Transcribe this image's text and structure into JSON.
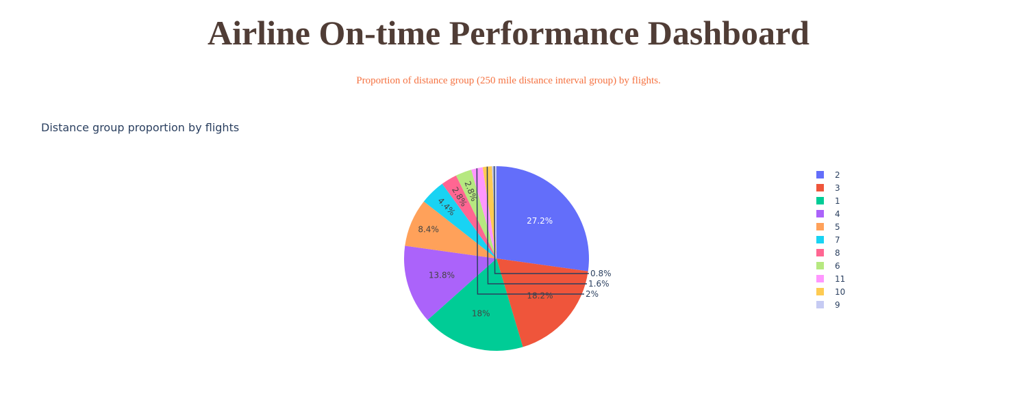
{
  "header": {
    "title": "Airline On-time Performance Dashboard",
    "subtitle": "Proportion of distance group (250 mile distance interval group) by flights."
  },
  "chart_data": {
    "type": "pie",
    "title": "Distance group proportion by flights",
    "legend_position": "right",
    "slices": [
      {
        "label": "2",
        "value": 27.2,
        "text": "27.2%",
        "color": "#636efa"
      },
      {
        "label": "3",
        "value": 18.2,
        "text": "18.2%",
        "color": "#EF553B"
      },
      {
        "label": "1",
        "value": 18.0,
        "text": "18%",
        "color": "#00cc96"
      },
      {
        "label": "4",
        "value": 13.8,
        "text": "13.8%",
        "color": "#ab63fa"
      },
      {
        "label": "5",
        "value": 8.4,
        "text": "8.4%",
        "color": "#FFA15A"
      },
      {
        "label": "7",
        "value": 4.4,
        "text": "4.4%",
        "color": "#19d3f3"
      },
      {
        "label": "8",
        "value": 2.8,
        "text": "2.8%",
        "color": "#FF6692"
      },
      {
        "label": "6",
        "value": 2.8,
        "text": "2.8%",
        "color": "#B6E880"
      },
      {
        "label": "11",
        "value": 2.0,
        "text": "2%",
        "color": "#FF97FF"
      },
      {
        "label": "10",
        "value": 1.6,
        "text": "1.6%",
        "color": "#FECB52"
      },
      {
        "label": "9",
        "value": 0.8,
        "text": "0.8%",
        "color": "#c6cbf3"
      }
    ]
  }
}
